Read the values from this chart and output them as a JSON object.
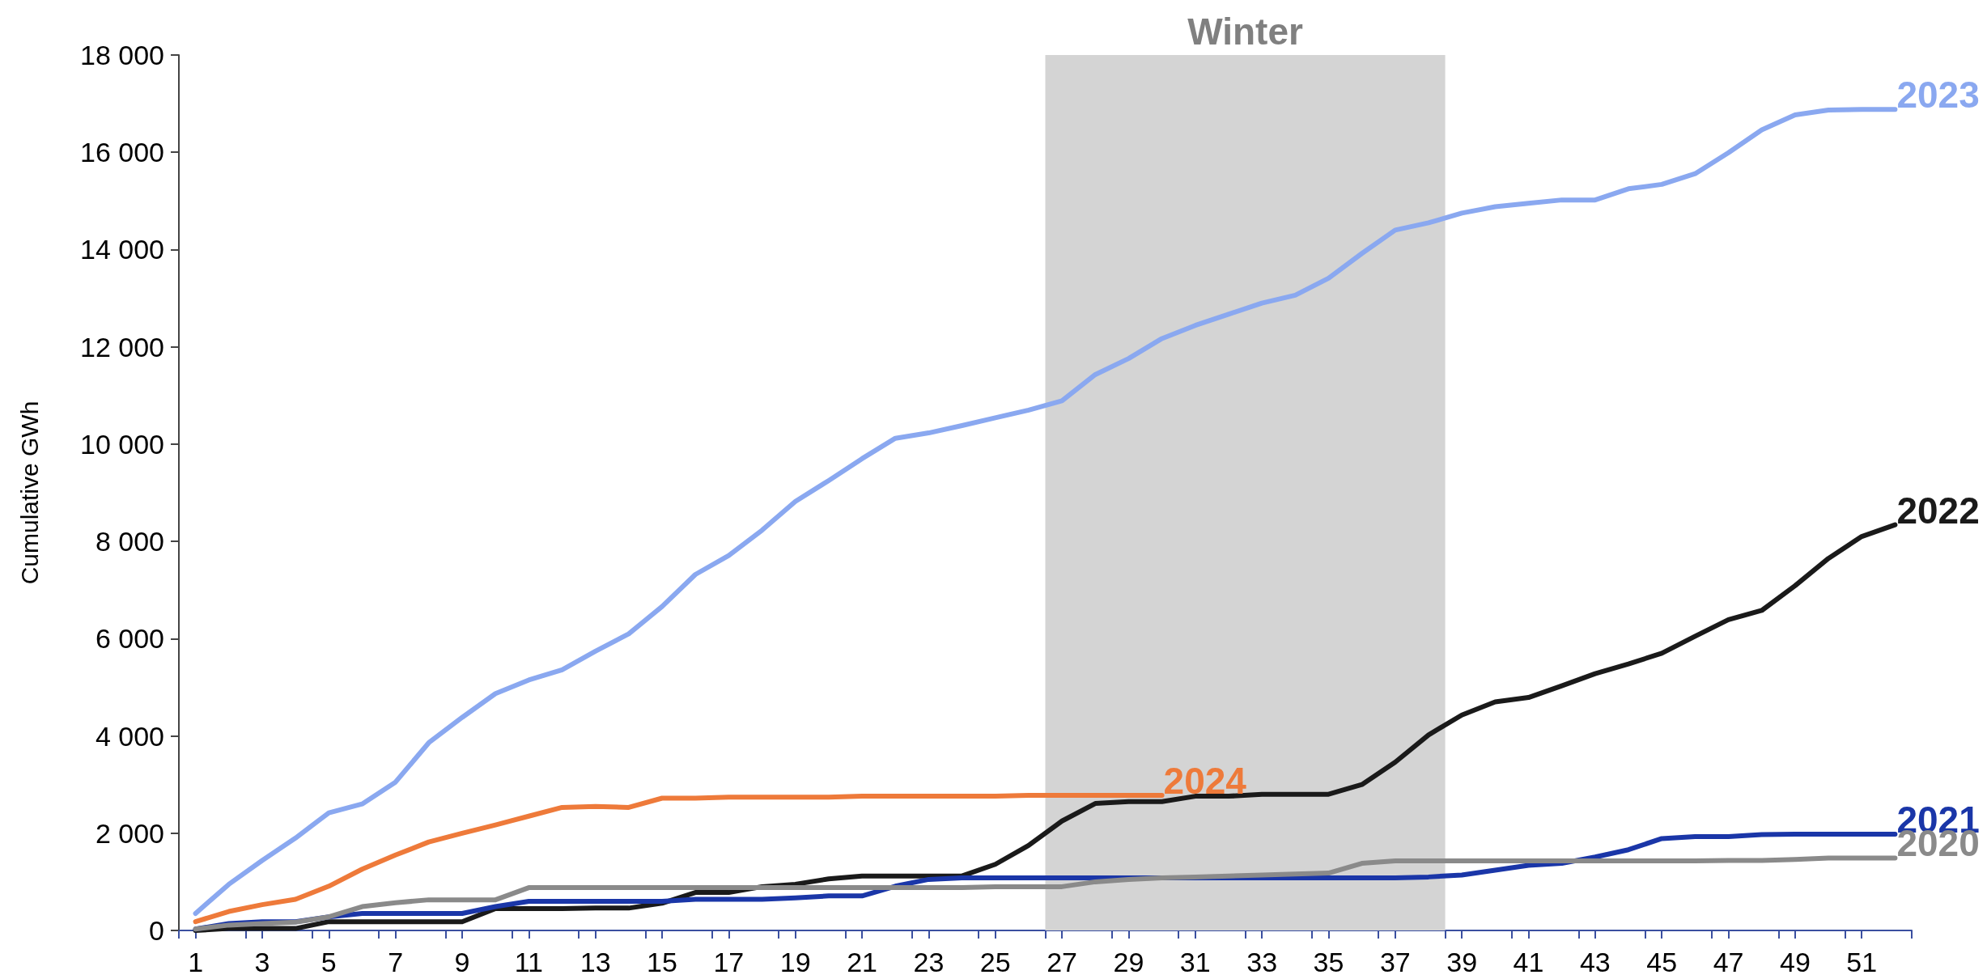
{
  "chart_data": {
    "type": "line",
    "ylabel": "Cumulative GWh",
    "x": [
      1,
      2,
      3,
      4,
      5,
      6,
      7,
      8,
      9,
      10,
      11,
      12,
      13,
      14,
      15,
      16,
      17,
      18,
      19,
      20,
      21,
      22,
      23,
      24,
      25,
      26,
      27,
      28,
      29,
      30,
      31,
      32,
      33,
      34,
      35,
      36,
      37,
      38,
      39,
      40,
      41,
      42,
      43,
      44,
      45,
      46,
      47,
      48,
      49,
      50,
      51,
      52
    ],
    "series": [
      {
        "name": "2023",
        "color": "#8aa8f0",
        "values": [
          350,
          950,
          1440,
          1900,
          2420,
          2600,
          3050,
          3860,
          4380,
          4870,
          5150,
          5360,
          5740,
          6100,
          6660,
          7320,
          7710,
          8230,
          8820,
          9250,
          9700,
          10120,
          10230,
          10380,
          10540,
          10700,
          10890,
          11430,
          11760,
          12170,
          12440,
          12670,
          12900,
          13060,
          13410,
          13920,
          14400,
          14550,
          14750,
          14880,
          14950,
          15020,
          15020,
          15250,
          15340,
          15560,
          15990,
          16460,
          16770,
          16870,
          16880,
          16880
        ]
      },
      {
        "name": "2022",
        "color": "#1a1a1a",
        "values": [
          0,
          40,
          40,
          40,
          180,
          180,
          180,
          180,
          180,
          450,
          450,
          450,
          460,
          460,
          560,
          780,
          780,
          900,
          950,
          1060,
          1120,
          1120,
          1120,
          1120,
          1360,
          1750,
          2250,
          2610,
          2650,
          2650,
          2760,
          2760,
          2800,
          2800,
          2800,
          3000,
          3460,
          4020,
          4430,
          4700,
          4790,
          5030,
          5280,
          5480,
          5700,
          6050,
          6390,
          6580,
          7090,
          7650,
          8100,
          8340
        ]
      },
      {
        "name": "2024",
        "color": "#ee7a3a",
        "x": [
          1,
          2,
          3,
          4,
          5,
          6,
          7,
          8,
          9,
          10,
          11,
          12,
          13,
          14,
          15,
          16,
          17,
          18,
          19,
          20,
          21,
          22,
          23,
          24,
          25,
          26,
          27,
          28,
          29,
          30
        ],
        "values": [
          180,
          390,
          530,
          640,
          910,
          1260,
          1550,
          1820,
          2000,
          2170,
          2350,
          2530,
          2550,
          2530,
          2720,
          2720,
          2740,
          2740,
          2740,
          2740,
          2760,
          2760,
          2760,
          2760,
          2760,
          2780,
          2780,
          2780,
          2780,
          2780
        ]
      },
      {
        "name": "2021",
        "color": "#1a36a8",
        "values": [
          30,
          140,
          180,
          180,
          280,
          350,
          350,
          350,
          350,
          490,
          600,
          600,
          600,
          600,
          600,
          640,
          640,
          640,
          670,
          710,
          710,
          910,
          1050,
          1080,
          1080,
          1080,
          1080,
          1080,
          1080,
          1080,
          1080,
          1080,
          1080,
          1080,
          1080,
          1080,
          1080,
          1100,
          1140,
          1240,
          1340,
          1380,
          1510,
          1660,
          1890,
          1930,
          1930,
          1970,
          1980,
          1980,
          1980,
          1980
        ]
      },
      {
        "name": "2020",
        "color": "#8a8a8a",
        "values": [
          30,
          110,
          140,
          170,
          280,
          490,
          570,
          630,
          630,
          630,
          880,
          880,
          880,
          880,
          880,
          880,
          880,
          880,
          880,
          880,
          880,
          880,
          880,
          880,
          900,
          900,
          900,
          1000,
          1050,
          1080,
          1100,
          1120,
          1140,
          1160,
          1180,
          1380,
          1430,
          1430,
          1430,
          1430,
          1430,
          1430,
          1430,
          1430,
          1430,
          1430,
          1440,
          1440,
          1460,
          1490,
          1490,
          1490
        ]
      }
    ],
    "xlim": [
      0.5,
      52.5
    ],
    "xticks": [
      {
        "value": 0.5,
        "label": null
      },
      1,
      {
        "value": 2.5,
        "label": null
      },
      3,
      {
        "value": 4.5,
        "label": null
      },
      5,
      {
        "value": 6.5,
        "label": null
      },
      7,
      {
        "value": 8.5,
        "label": null
      },
      9,
      {
        "value": 10.5,
        "label": null
      },
      11,
      {
        "value": 12.5,
        "label": null
      },
      13,
      {
        "value": 14.5,
        "label": null
      },
      15,
      {
        "value": 16.5,
        "label": null
      },
      17,
      {
        "value": 18.5,
        "label": null
      },
      19,
      {
        "value": 20.5,
        "label": null
      },
      21,
      {
        "value": 22.5,
        "label": null
      },
      23,
      {
        "value": 24.5,
        "label": null
      },
      25,
      {
        "value": 26.5,
        "label": null
      },
      27,
      {
        "value": 28.5,
        "label": null
      },
      29,
      {
        "value": 30.5,
        "label": null
      },
      31,
      {
        "value": 32.5,
        "label": null
      },
      33,
      {
        "value": 34.5,
        "label": null
      },
      35,
      {
        "value": 36.5,
        "label": null
      },
      37,
      {
        "value": 38.5,
        "label": null
      },
      39,
      {
        "value": 40.5,
        "label": null
      },
      41,
      {
        "value": 42.5,
        "label": null
      },
      43,
      {
        "value": 44.5,
        "label": null
      },
      45,
      {
        "value": 46.5,
        "label": null
      },
      47,
      {
        "value": 48.5,
        "label": null
      },
      49,
      {
        "value": 50.5,
        "label": null
      },
      51,
      {
        "value": 52.5,
        "label": null
      }
    ],
    "ylim": [
      0,
      18000
    ],
    "yticks": [
      0,
      {
        "value": 2000,
        "label": "2 000"
      },
      {
        "value": 4000,
        "label": "4 000"
      },
      {
        "value": 6000,
        "label": "6 000"
      },
      {
        "value": 8000,
        "label": "8 000"
      },
      {
        "value": 10000,
        "label": "10 000"
      },
      {
        "value": 12000,
        "label": "12 000"
      },
      {
        "value": 14000,
        "label": "14 000"
      },
      {
        "value": 16000,
        "label": "16 000"
      },
      {
        "value": 18000,
        "label": "18 000"
      }
    ],
    "bands": [
      {
        "axis": "x",
        "from": 26.5,
        "to": 38.5,
        "label": "Winter",
        "color": "#d4d4d4"
      }
    ],
    "grid": false,
    "legend": false,
    "marker": "none",
    "line_style": "solid"
  }
}
